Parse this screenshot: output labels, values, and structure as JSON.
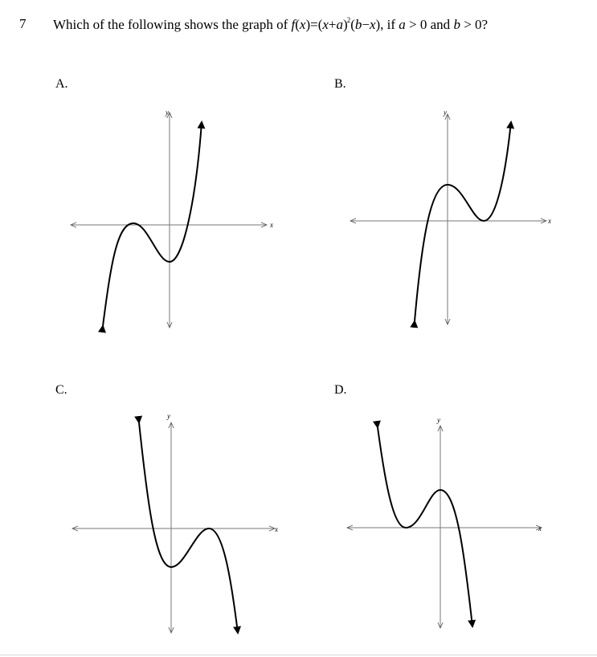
{
  "question": {
    "number": "7",
    "prefix": "Which of the following shows the graph of",
    "f": "f",
    "x": "x",
    "a": "a",
    "b": "b",
    "exponent": "2",
    "condition_and": "and",
    "zero": "0"
  },
  "axis_labels": {
    "x": "x",
    "y": "y"
  },
  "options": [
    {
      "label": "A."
    },
    {
      "label": "B."
    },
    {
      "label": "C."
    },
    {
      "label": "D."
    }
  ]
}
